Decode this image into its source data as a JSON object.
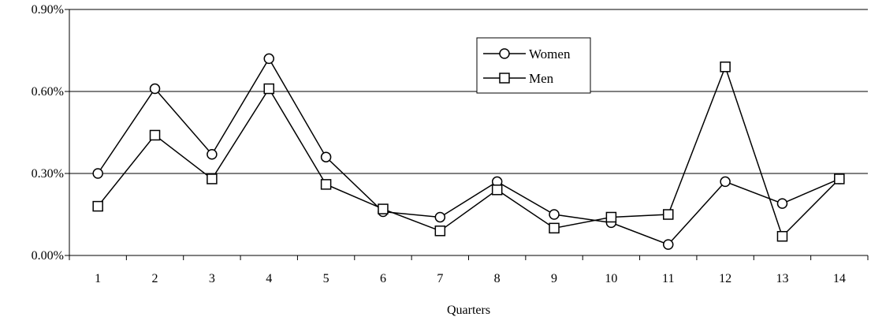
{
  "chart_data": {
    "type": "line",
    "xlabel": "Quarters",
    "ylabel": "",
    "x": [
      "1",
      "2",
      "3",
      "4",
      "5",
      "6",
      "7",
      "8",
      "9",
      "10",
      "11",
      "12",
      "13",
      "14"
    ],
    "yticks": [
      "0.00%",
      "0.30%",
      "0.60%",
      "0.90%"
    ],
    "ylim": [
      0,
      0.9
    ],
    "grid": true,
    "legend_position": "top-right",
    "series": [
      {
        "name": "Women",
        "marker": "circle",
        "values": [
          0.3,
          0.61,
          0.37,
          0.72,
          0.36,
          0.16,
          0.14,
          0.27,
          0.15,
          0.12,
          0.04,
          0.27,
          0.19,
          0.28
        ]
      },
      {
        "name": "Men",
        "marker": "square",
        "values": [
          0.18,
          0.44,
          0.28,
          0.61,
          0.26,
          0.17,
          0.09,
          0.24,
          0.1,
          0.14,
          0.15,
          0.69,
          0.07,
          0.28
        ]
      }
    ]
  }
}
